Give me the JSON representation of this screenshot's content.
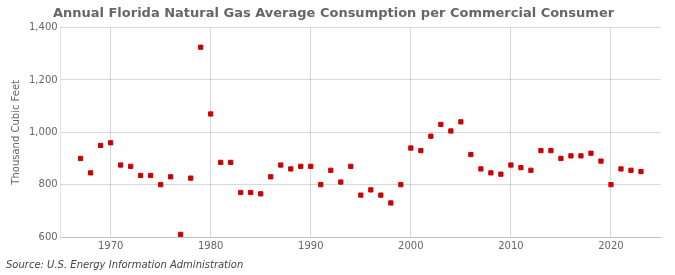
{
  "chart_data": {
    "type": "scatter",
    "title": "Annual Florida Natural Gas Average Consumption per Commercial Consumer",
    "ylabel": "Thousand Cubic Feet",
    "source": "Source: U.S. Energy Information Administration",
    "x": [
      1967,
      1968,
      1969,
      1970,
      1971,
      1972,
      1973,
      1974,
      1975,
      1976,
      1977,
      1978,
      1979,
      1980,
      1981,
      1982,
      1983,
      1984,
      1985,
      1986,
      1987,
      1988,
      1989,
      1990,
      1991,
      1992,
      1993,
      1994,
      1995,
      1996,
      1997,
      1998,
      1999,
      2000,
      2001,
      2002,
      2003,
      2004,
      2005,
      2006,
      2007,
      2008,
      2009,
      2010,
      2011,
      2012,
      2013,
      2014,
      2015,
      2016,
      2017,
      2018,
      2019,
      2020,
      2021,
      2022,
      2023
    ],
    "values": [
      900,
      845,
      950,
      960,
      875,
      870,
      835,
      835,
      800,
      830,
      610,
      825,
      1325,
      1070,
      885,
      885,
      770,
      770,
      765,
      830,
      875,
      860,
      870,
      870,
      800,
      855,
      810,
      870,
      760,
      780,
      760,
      730,
      800,
      940,
      930,
      985,
      1030,
      1005,
      1040,
      915,
      860,
      845,
      840,
      875,
      865,
      855,
      930,
      930,
      900,
      910,
      910,
      920,
      890,
      800,
      860,
      855,
      850
    ],
    "color": "#cc0000",
    "marker": "square",
    "xlim": [
      1965,
      2025
    ],
    "xticks": [
      1970,
      1980,
      1990,
      2000,
      2010,
      2020
    ],
    "ylim": [
      600,
      1400
    ],
    "yticks": [
      600,
      800,
      {
        "value": 1000,
        "label": "1,000"
      },
      {
        "value": 1200,
        "label": "1,200"
      },
      {
        "value": 1400,
        "label": "1,400"
      }
    ],
    "grid": true,
    "legend": false
  }
}
